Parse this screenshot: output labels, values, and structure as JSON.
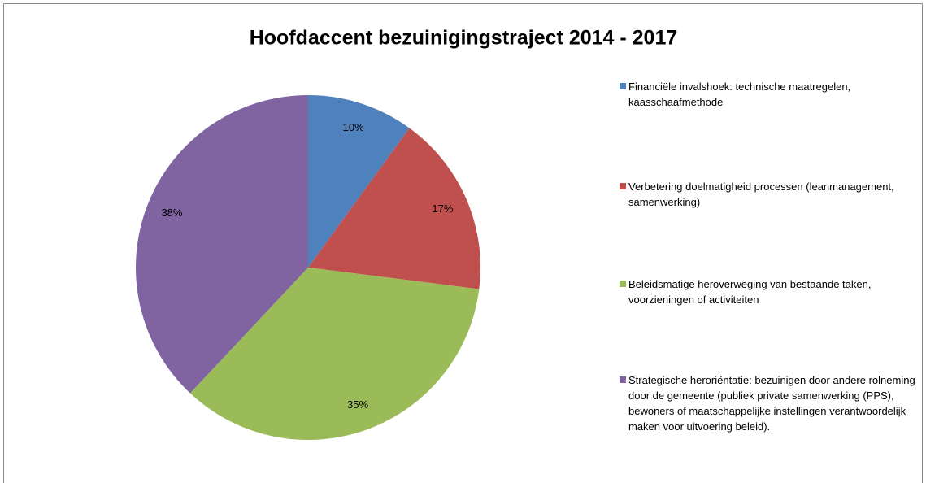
{
  "chart_data": {
    "type": "pie",
    "title": "Hoofdaccent bezuinigingstraject 2014 - 2017",
    "categories": [
      "Financiële invalshoek: technische maatregelen, kaasschaafmethode",
      "Verbetering doelmatigheid processen (leanmanagement, samenwerking)",
      "Beleidsmatige heroverweging van bestaande taken, voorzieningen of activiteiten",
      "Strategische heroriëntatie: bezuinigen door andere rolneming door de gemeente (publiek private samenwerking (PPS), bewoners of maatschappelijke instellingen verantwoordelijk maken voor uitvoering beleid)."
    ],
    "values": [
      10,
      17,
      35,
      38
    ],
    "value_labels": [
      "10%",
      "17%",
      "35%",
      "38%"
    ],
    "colors": [
      "#4f81bd",
      "#c0504d",
      "#9bbb59",
      "#8064a2"
    ],
    "legend": "right"
  }
}
